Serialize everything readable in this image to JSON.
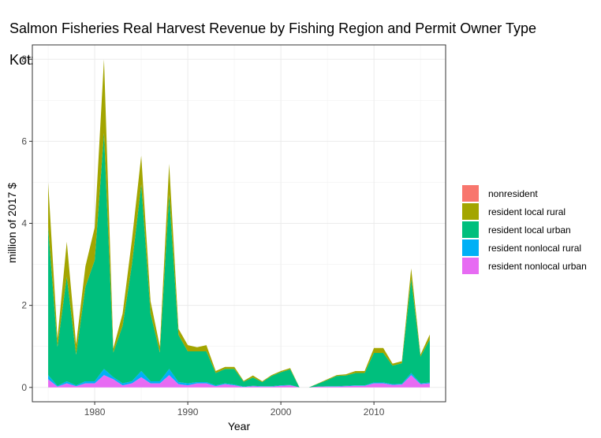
{
  "chart_data": {
    "type": "area",
    "title": "Salmon Fisheries Real Harvest Revenue by Fishing Region and Permit Owner Type",
    "subtitle": "Kotzebue",
    "xlabel": "Year",
    "ylabel": "million of 2017 $",
    "xlim": [
      1973.3,
      2017.7
    ],
    "ylim": [
      -0.35,
      8.35
    ],
    "x_ticks": [
      1980,
      1990,
      2000,
      2010
    ],
    "y_ticks": [
      0,
      2,
      4,
      6,
      8
    ],
    "grid": true,
    "legend_position": "right",
    "x": [
      1975,
      1976,
      1977,
      1978,
      1979,
      1980,
      1981,
      1982,
      1983,
      1984,
      1985,
      1986,
      1987,
      1988,
      1989,
      1990,
      1991,
      1992,
      1993,
      1994,
      1995,
      1996,
      1997,
      1998,
      1999,
      2000,
      2001,
      2002,
      2003,
      2004,
      2005,
      2006,
      2007,
      2008,
      2009,
      2010,
      2011,
      2012,
      2013,
      2014,
      2015,
      2016
    ],
    "series": [
      {
        "name": "nonresident",
        "color": "#F8766D",
        "values": [
          0,
          0,
          0,
          0,
          0,
          0,
          0,
          0,
          0,
          0,
          0,
          0,
          0,
          0,
          0,
          0,
          0,
          0,
          0,
          0,
          0,
          0,
          0,
          0,
          0,
          0,
          0,
          0,
          0,
          0,
          0,
          0,
          0,
          0,
          0,
          0,
          0,
          0,
          0,
          0,
          0,
          0
        ]
      },
      {
        "name": "resident local rural",
        "color": "#A3A500",
        "values": [
          1.1,
          0.2,
          0.85,
          0.25,
          0.5,
          0.8,
          1.8,
          0.1,
          0.3,
          0.6,
          0.7,
          0.3,
          0.15,
          0.75,
          0.15,
          0.15,
          0.1,
          0.15,
          0.05,
          0.05,
          0.05,
          0.02,
          0.05,
          0.02,
          0.02,
          0.03,
          0.03,
          0,
          0,
          0.01,
          0.02,
          0.02,
          0.03,
          0.05,
          0.05,
          0.12,
          0.12,
          0.05,
          0.05,
          0.25,
          0.05,
          0.12
        ]
      },
      {
        "name": "resident local urban",
        "color": "#00BF7D",
        "values": [
          3.6,
          0.95,
          2.55,
          0.75,
          2.3,
          2.95,
          5.75,
          0.6,
          1.4,
          2.85,
          4.55,
          1.65,
          0.7,
          4.25,
          1.15,
          0.78,
          0.75,
          0.75,
          0.3,
          0.35,
          0.38,
          0.12,
          0.2,
          0.1,
          0.25,
          0.32,
          0.38,
          0,
          0,
          0.07,
          0.15,
          0.25,
          0.25,
          0.3,
          0.3,
          0.72,
          0.72,
          0.45,
          0.5,
          2.3,
          0.65,
          1.05
        ]
      },
      {
        "name": "resident nonlocal rural",
        "color": "#00B0F6",
        "values": [
          0.1,
          0.02,
          0.05,
          0.02,
          0.05,
          0.05,
          0.15,
          0.05,
          0.05,
          0.05,
          0.15,
          0.05,
          0.05,
          0.15,
          0.05,
          0.05,
          0.03,
          0.03,
          0.02,
          0.02,
          0.02,
          0.01,
          0.01,
          0.01,
          0.01,
          0.01,
          0.01,
          0,
          0,
          0,
          0.01,
          0.01,
          0.01,
          0.01,
          0.01,
          0.02,
          0.02,
          0.02,
          0.02,
          0.05,
          0.02,
          0.02
        ]
      },
      {
        "name": "resident nonlocal urban",
        "color": "#E76BF3",
        "values": [
          0.2,
          0.02,
          0.1,
          0.03,
          0.1,
          0.1,
          0.3,
          0.2,
          0.05,
          0.1,
          0.25,
          0.1,
          0.1,
          0.3,
          0.08,
          0.05,
          0.1,
          0.1,
          0.03,
          0.08,
          0.05,
          0.01,
          0.03,
          0.02,
          0.02,
          0.04,
          0.05,
          0,
          0,
          0.02,
          0.02,
          0.02,
          0.03,
          0.04,
          0.04,
          0.1,
          0.1,
          0.06,
          0.07,
          0.3,
          0.08,
          0.1
        ]
      }
    ]
  }
}
